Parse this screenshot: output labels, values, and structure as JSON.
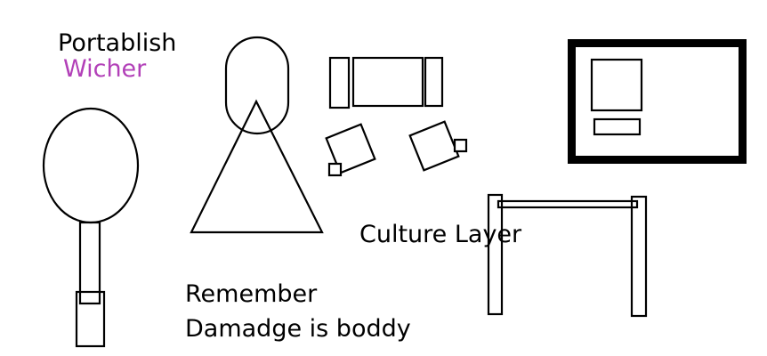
{
  "labels": {
    "portablish": "Portablish",
    "wicher": "Wicher",
    "culture_layer": "Culture Layer",
    "remember": "Remember",
    "damadge": "Damadge is boddy"
  },
  "colors": {
    "ink": "#000000",
    "wicher_text": "#b240b8",
    "background": "#ffffff"
  }
}
